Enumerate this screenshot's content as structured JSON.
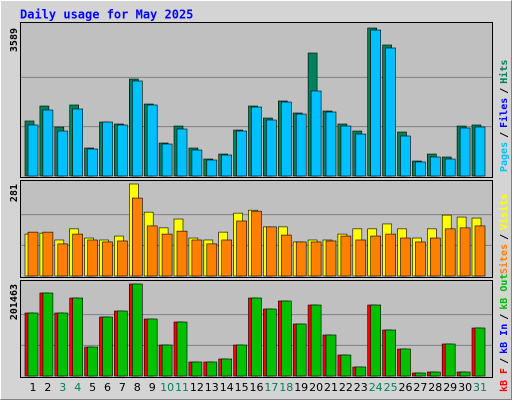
{
  "chart_data": [
    {
      "type": "bar",
      "title": "Daily usage for May 2025",
      "ylim": [
        0,
        3589
      ],
      "yticks": [
        3589
      ],
      "grid_divisions": 3,
      "series": [
        {
          "color": "#00805C",
          "values": [
            1334,
            1697,
            1188,
            1722,
            679,
            1309,
            1261,
            2352,
            1746,
            800,
            1212,
            679,
            412,
            533,
            1115,
            1697,
            1406,
            1819,
            1528,
            2983,
            1576,
            1261,
            1091,
            3589,
            3177,
            1067,
            364,
            533,
            461,
            1212,
            1237
          ]
        },
        {
          "color": "#00C0FF",
          "values": [
            1237,
            1600,
            1091,
            1625,
            655,
            1309,
            1237,
            2304,
            1722,
            776,
            1140,
            630,
            388,
            509,
            1091,
            1673,
            1358,
            1794,
            1503,
            2061,
            1552,
            1212,
            1018,
            3540,
            3104,
            970,
            340,
            461,
            412,
            1164,
            1188
          ]
        }
      ],
      "separator": "/",
      "legend": [
        {
          "label": "Pages",
          "color": "#00C0FF"
        },
        {
          "label": "Files",
          "color": "#0000FF"
        },
        {
          "label": "Hits",
          "color": "#00805C"
        }
      ]
    },
    {
      "type": "bar",
      "ylim": [
        0,
        281
      ],
      "yticks": [
        281
      ],
      "grid_divisions": 3,
      "series": [
        {
          "color": "#FFFF00",
          "values": [
            128,
            131,
            110,
            144,
            116,
            110,
            122,
            281,
            195,
            147,
            174,
            116,
            110,
            134,
            192,
            201,
            150,
            150,
            104,
            110,
            110,
            128,
            144,
            144,
            159,
            144,
            116,
            144,
            186,
            180,
            177
          ]
        },
        {
          "color": "#FF8000",
          "values": [
            134,
            134,
            98,
            128,
            110,
            104,
            107,
            238,
            153,
            128,
            137,
            110,
            98,
            110,
            168,
            198,
            150,
            125,
            104,
            104,
            107,
            122,
            110,
            122,
            128,
            116,
            104,
            116,
            144,
            147,
            153
          ]
        }
      ],
      "separator": "/",
      "legend": [
        {
          "label": "Sites",
          "color": "#FF8000"
        },
        {
          "label": "Visits",
          "color": "#FFFF00"
        }
      ]
    },
    {
      "type": "bar",
      "ylim": [
        0,
        201463
      ],
      "yticks": [
        201463
      ],
      "grid_divisions": 3,
      "categories": [
        "1",
        "2",
        "3",
        "4",
        "5",
        "6",
        "7",
        "8",
        "9",
        "10",
        "11",
        "12",
        "13",
        "14",
        "15",
        "16",
        "17",
        "18",
        "19",
        "20",
        "21",
        "22",
        "23",
        "24",
        "25",
        "26",
        "27",
        "28",
        "29",
        "30",
        "31"
      ],
      "category_colors": [
        "#000000",
        "#000000",
        "#00805C",
        "#00805C",
        "#000000",
        "#000000",
        "#000000",
        "#000000",
        "#000000",
        "#00805C",
        "#00805C",
        "#000000",
        "#000000",
        "#000000",
        "#000000",
        "#000000",
        "#00805C",
        "#00805C",
        "#000000",
        "#000000",
        "#000000",
        "#000000",
        "#000000",
        "#00805C",
        "#00805C",
        "#000000",
        "#000000",
        "#000000",
        "#000000",
        "#000000",
        "#00805C"
      ],
      "series": [
        {
          "color": "#FF0000",
          "values": [
            137958,
            181754,
            137958,
            170805,
            63505,
            129199,
            142338,
            201463,
            124819,
            67884,
            118250,
            30657,
            30657,
            37226,
            67884,
            170805,
            146718,
            164236,
            113871,
            155477,
            89782,
            45986,
            19708,
            155477,
            100730,
            59124,
            6569,
            8759,
            70074,
            8759,
            105111
          ]
        },
        {
          "color": "#00C000",
          "values": [
            137958,
            181754,
            137958,
            170805,
            63505,
            129199,
            142338,
            201463,
            124819,
            67884,
            118250,
            30657,
            30657,
            37226,
            67884,
            170805,
            146718,
            164236,
            113871,
            155477,
            89782,
            45986,
            19708,
            155477,
            100730,
            59124,
            6569,
            8759,
            70074,
            8759,
            105111
          ]
        }
      ],
      "separator": "/",
      "legend": [
        {
          "label": "kB F",
          "color": "#FF0000"
        },
        {
          "label": "kB In",
          "color": "#0000FF"
        },
        {
          "label": "kB Out",
          "color": "#00C000"
        }
      ]
    }
  ]
}
